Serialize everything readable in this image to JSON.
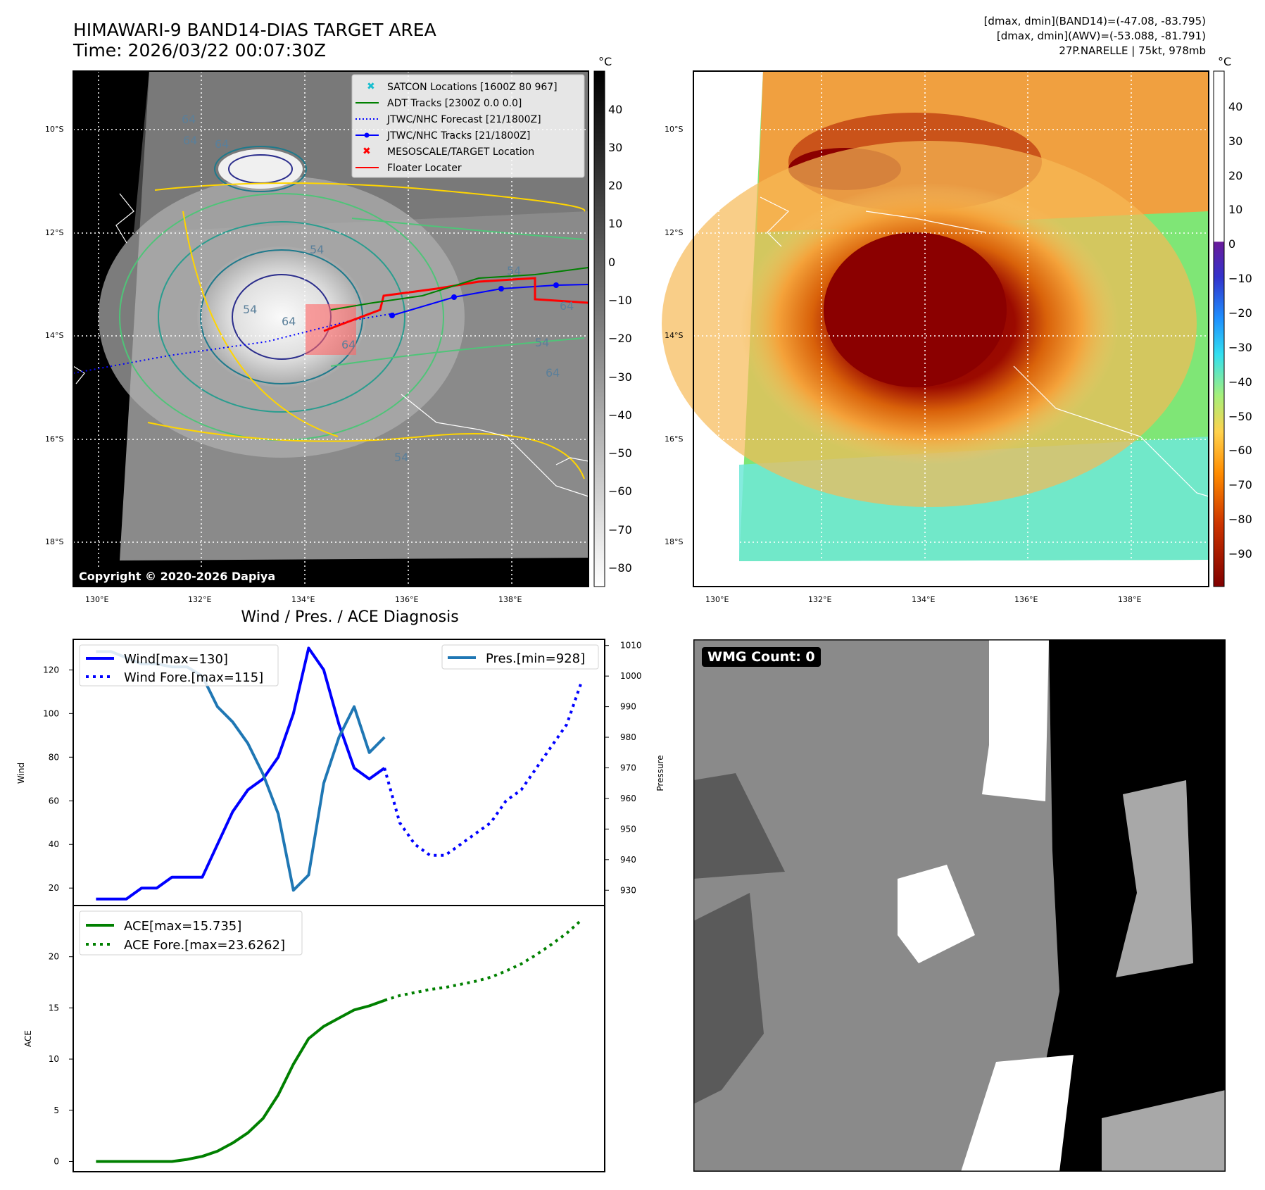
{
  "top_left": {
    "title_line1": "HIMAWARI-9 BAND14-DIAS TARGET AREA",
    "title_line2": "Time: 2026/03/22 00:07:30Z",
    "unit_label": "°C",
    "colorbar_ticks": [
      "40",
      "30",
      "20",
      "10",
      "0",
      "−10",
      "−20",
      "−30",
      "−40",
      "−50",
      "−60",
      "−70",
      "−80"
    ],
    "lat_labels": [
      "10°S",
      "12°S",
      "14°S",
      "16°S",
      "18°S"
    ],
    "lon_labels": [
      "130°E",
      "132°E",
      "134°E",
      "136°E",
      "138°E"
    ],
    "copyright": "Copyright © 2020-2026 Dapiya",
    "legend": [
      {
        "label": "SATCON Locations [1600Z 80 967]",
        "color": "#17becf"
      },
      {
        "label": "ADT Tracks [2300Z 0.0 0.0]",
        "color": "#008000"
      },
      {
        "label": "JTWC/NHC Forecast [21/1800Z]",
        "color": "#0000ff"
      },
      {
        "label": "JTWC/NHC Tracks [21/1800Z]",
        "color": "#0000ff"
      },
      {
        "label": "MESOSCALE/TARGET Location",
        "color": "#ff0000"
      },
      {
        "label": "Floater Locater",
        "color": "#ff0000"
      }
    ],
    "contour_labels": [
      "64",
      "64",
      "64",
      "64",
      "64",
      "64",
      "64",
      "54",
      "54",
      "54",
      "54",
      "54"
    ]
  },
  "top_right": {
    "info_line1": "[dmax, dmin](BAND14)=(-47.08, -83.795)",
    "info_line2": "[dmax, dmin](AWV)=(-53.088, -81.791)",
    "info_line3": "27P.NARELLE | 75kt, 978mb",
    "unit_label": "°C",
    "colorbar_ticks": [
      "40",
      "30",
      "20",
      "10",
      "0",
      "−10",
      "−20",
      "−30",
      "−40",
      "−50",
      "−60",
      "−70",
      "−80",
      "−90"
    ],
    "lat_labels": [
      "10°S",
      "12°S",
      "14°S",
      "16°S",
      "18°S"
    ],
    "lon_labels": [
      "130°E",
      "132°E",
      "134°E",
      "136°E",
      "138°E"
    ]
  },
  "bottom_left": {
    "title": "Wind / Pres. / ACE Diagnosis",
    "wind_ylabel": "Wind",
    "pres_ylabel": "Pressure",
    "ace_ylabel": "ACE",
    "legend_wind": "Wind[max=130]",
    "legend_wind_fore": "Wind Fore.[max=115]",
    "legend_pres": "Pres.[min=928]",
    "legend_ace": "ACE[max=15.735]",
    "legend_ace_fore": "ACE Fore.[max=23.6262]"
  },
  "bottom_right": {
    "wmg_label": "WMG Count: 0"
  },
  "chart_data": [
    {
      "type": "line",
      "title": "Wind / Pres. / ACE Diagnosis",
      "ylabel": "Wind",
      "ylim": [
        12,
        134
      ],
      "yticks": [
        20,
        40,
        60,
        80,
        100,
        120
      ],
      "series": [
        {
          "name": "Wind[max=130]",
          "color": "#0000ff",
          "style": "solid",
          "x": [
            0,
            1,
            2,
            3,
            4,
            5,
            6,
            7,
            8,
            9,
            10,
            11,
            12,
            13,
            14,
            15,
            16,
            17,
            18,
            19
          ],
          "values": [
            15,
            15,
            15,
            20,
            20,
            25,
            25,
            25,
            40,
            55,
            65,
            70,
            80,
            100,
            130,
            120,
            95,
            75,
            70,
            75
          ]
        },
        {
          "name": "Wind Fore.[max=115]",
          "color": "#0000ff",
          "style": "dotted",
          "x": [
            19,
            20,
            21,
            22,
            23,
            24,
            25,
            26,
            27,
            28,
            29,
            30,
            31,
            32
          ],
          "values": [
            75,
            50,
            40,
            35,
            35,
            40,
            45,
            50,
            60,
            65,
            75,
            85,
            95,
            115
          ]
        }
      ]
    },
    {
      "type": "line",
      "ylabel": "Pressure",
      "ylim": [
        925,
        1012
      ],
      "yticks": [
        930,
        940,
        950,
        960,
        970,
        980,
        990,
        1000,
        1010
      ],
      "series": [
        {
          "name": "Pres.[min=928]",
          "color": "#1f77b4",
          "style": "solid",
          "x": [
            0,
            1,
            2,
            3,
            4,
            5,
            6,
            7,
            8,
            9,
            10,
            11,
            12,
            13,
            14,
            15,
            16,
            17,
            18,
            19
          ],
          "values": [
            1008,
            1008,
            1006,
            1004,
            1004,
            1003,
            1003,
            1000,
            990,
            985,
            978,
            968,
            955,
            930,
            935,
            965,
            980,
            990,
            975,
            980
          ]
        }
      ]
    },
    {
      "type": "line",
      "ylabel": "ACE",
      "ylim": [
        -1,
        25
      ],
      "yticks": [
        0,
        5,
        10,
        15,
        20
      ],
      "series": [
        {
          "name": "ACE[max=15.735]",
          "color": "#008000",
          "style": "solid",
          "x": [
            0,
            1,
            2,
            3,
            4,
            5,
            6,
            7,
            8,
            9,
            10,
            11,
            12,
            13,
            14,
            15,
            16,
            17,
            18,
            19
          ],
          "values": [
            0,
            0,
            0,
            0,
            0,
            0,
            0.2,
            0.5,
            1.0,
            1.8,
            2.8,
            4.2,
            6.5,
            9.5,
            12.0,
            13.2,
            14.0,
            14.8,
            15.2,
            15.735
          ]
        },
        {
          "name": "ACE Fore.[max=23.6262]",
          "color": "#008000",
          "style": "dotted",
          "x": [
            19,
            20,
            21,
            22,
            23,
            24,
            25,
            26,
            27,
            28,
            29,
            30,
            31,
            32
          ],
          "values": [
            15.735,
            16.2,
            16.5,
            16.8,
            17.0,
            17.3,
            17.6,
            18.0,
            18.6,
            19.3,
            20.2,
            21.2,
            22.3,
            23.6262
          ]
        }
      ]
    }
  ]
}
